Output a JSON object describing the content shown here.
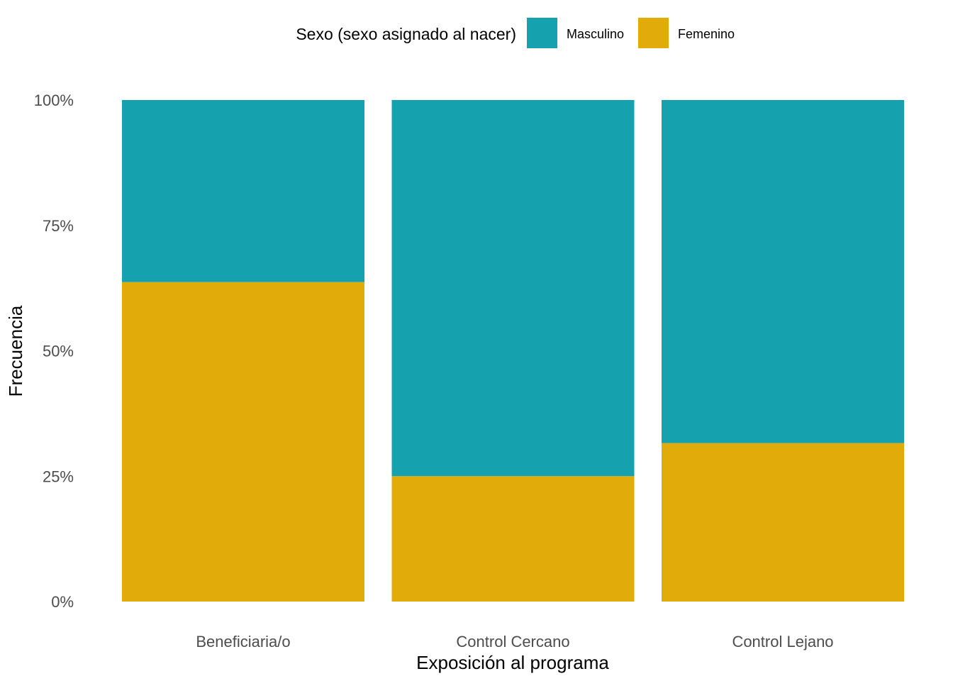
{
  "chart_data": {
    "type": "bar",
    "stacked": "percent",
    "categories": [
      "Beneficiaria/o",
      "Control Cercano",
      "Control Lejano"
    ],
    "series": [
      {
        "name": "Femenino",
        "values": [
          63.7,
          25.0,
          31.6
        ],
        "color": "#E1AB09"
      },
      {
        "name": "Masculino",
        "values": [
          36.3,
          75.0,
          68.4
        ],
        "color": "#16A1AE"
      }
    ],
    "xlabel": "Exposición al programa",
    "ylabel": "Frecuencia",
    "ylim": [
      0,
      100
    ],
    "yticks": [
      0,
      25,
      50,
      75,
      100
    ],
    "ytick_labels": [
      "0%",
      "25%",
      "50%",
      "75%",
      "100%"
    ],
    "legend": {
      "title": "Sexo (sexo asignado al nacer)",
      "entries": [
        "Masculino",
        "Femenino"
      ],
      "position": "top"
    },
    "grid": false
  }
}
